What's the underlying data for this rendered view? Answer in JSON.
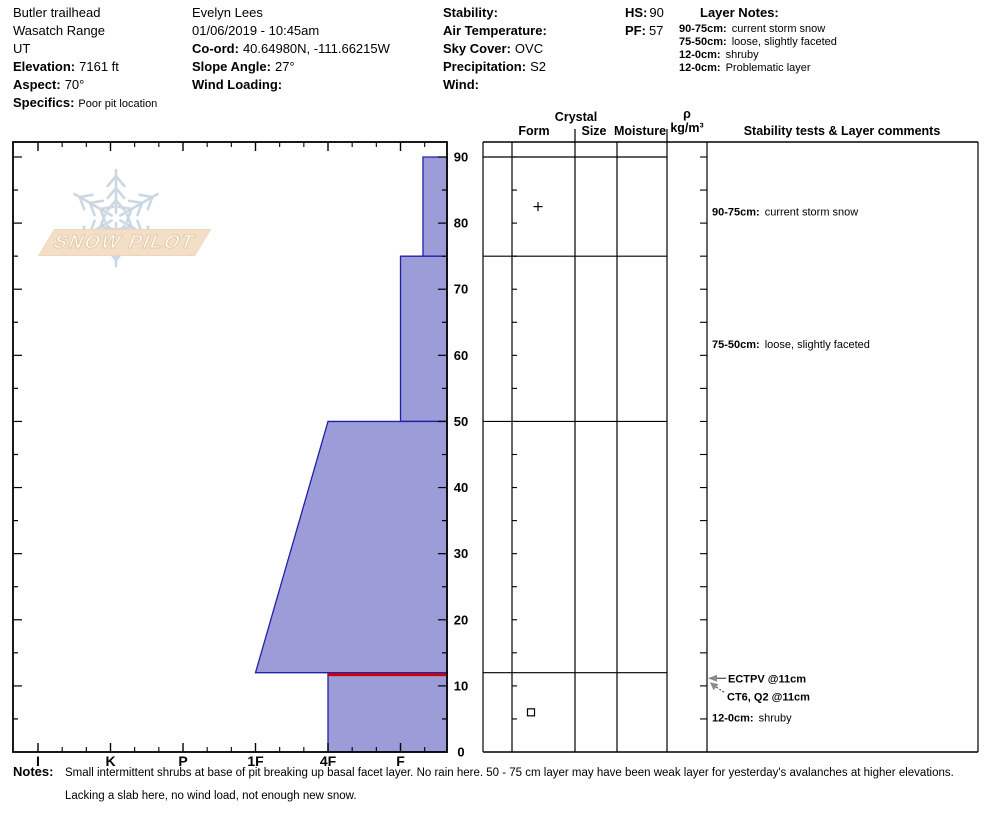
{
  "header": {
    "location": {
      "name": "Butler trailhead",
      "range": "Wasatch Range",
      "state": "UT",
      "elevation_label": "Elevation:",
      "elevation": "7161 ft",
      "aspect_label": "Aspect:",
      "aspect": "70°",
      "specifics_label": "Specifics:",
      "specifics": "Poor pit location"
    },
    "observer": {
      "name": "Evelyn Lees",
      "datetime": "01/06/2019 - 10:45am",
      "coord_label": "Co-ord:",
      "coord": "40.64980N, -111.66215W",
      "slope_label": "Slope Angle:",
      "slope": "27°",
      "wind_loading_label": "Wind Loading:",
      "wind_loading": ""
    },
    "conditions": {
      "stability_label": "Stability:",
      "stability": "",
      "air_temp_label": "Air Temperature:",
      "air_temp": "",
      "sky_label": "Sky Cover:",
      "sky": "OVC",
      "precip_label": "Precipitation:",
      "precip": "S2",
      "wind_label": "Wind:",
      "wind": ""
    },
    "totals": {
      "hs_label": "HS:",
      "hs": "90",
      "pf_label": "PF:",
      "pf": "57"
    },
    "layer_notes": {
      "title": "Layer Notes:",
      "items": [
        {
          "range": "90-75cm:",
          "text": "current storm snow"
        },
        {
          "range": "75-50cm:",
          "text": "loose, slightly faceted"
        },
        {
          "range": "12-0cm:",
          "text": "shruby"
        },
        {
          "range": "12-0cm:",
          "text": "Problematic layer"
        }
      ]
    }
  },
  "watermark": {
    "text": "SNOW PILOT"
  },
  "chart_data": {
    "type": "bar",
    "orientation": "horizontal-snow-profile",
    "depth_axis": {
      "unit": "cm",
      "min": 0,
      "max": 90,
      "major_tick_step": 10,
      "minor_tick_step": 5
    },
    "hardness_axis": {
      "categories": [
        "I",
        "K",
        "P",
        "1F",
        "4F",
        "F"
      ],
      "soft_side": "right"
    },
    "layers": [
      {
        "top_cm": 90,
        "bottom_cm": 75,
        "hardness": "F-",
        "hardness_index_top": 5.31,
        "hardness_index_bottom": 5.31,
        "grain_form_symbol": "plus",
        "comment_label": "90-75cm:",
        "comment": "current storm snow"
      },
      {
        "top_cm": 75,
        "bottom_cm": 50,
        "hardness": "F",
        "hardness_index_top": 5,
        "hardness_index_bottom": 5,
        "comment_label": "75-50cm:",
        "comment": "loose, slightly faceted"
      },
      {
        "top_cm": 50,
        "bottom_cm": 12,
        "hardness": "4F to 1F",
        "hardness_index_top": 4,
        "hardness_index_bottom": 3
      },
      {
        "top_cm": 12,
        "bottom_cm": 0,
        "hardness": "4F",
        "hardness_index_top": 4,
        "hardness_index_bottom": 4,
        "grain_form_symbol": "square",
        "comment_label": "12-0cm:",
        "comment": "shruby",
        "problematic": true
      }
    ],
    "problem_layer": {
      "depth_cm": 12
    },
    "tests": [
      {
        "text": "ECTPV @11cm",
        "depth_cm": 11
      },
      {
        "text": "CT6, Q2 @11cm",
        "depth_cm": 11
      }
    ],
    "table_headers": {
      "crystal": "Crystal",
      "form": "Form",
      "size": "Size",
      "moisture": "Moisture",
      "density_rho": "ρ",
      "density_units": "kg/m³",
      "comments": "Stability tests & Layer comments"
    },
    "colors": {
      "layer_fill": "#9c9cd8",
      "layer_outline": "#2121a8",
      "problem_line": "#cc0000",
      "arrow_gray": "#8a8a8a",
      "watermark_banner": "#f2dcc1",
      "watermark_flake": "#c6d4e0"
    }
  },
  "notes": {
    "label": "Notes:",
    "text": "Small intermittent shrubs at base of pit breaking up basal facet layer.  No rain here.  50 - 75 cm layer may have been weak layer for yesterday's avalanches at higher elevations.  Lacking a slab here, no wind load, not enough new snow."
  }
}
